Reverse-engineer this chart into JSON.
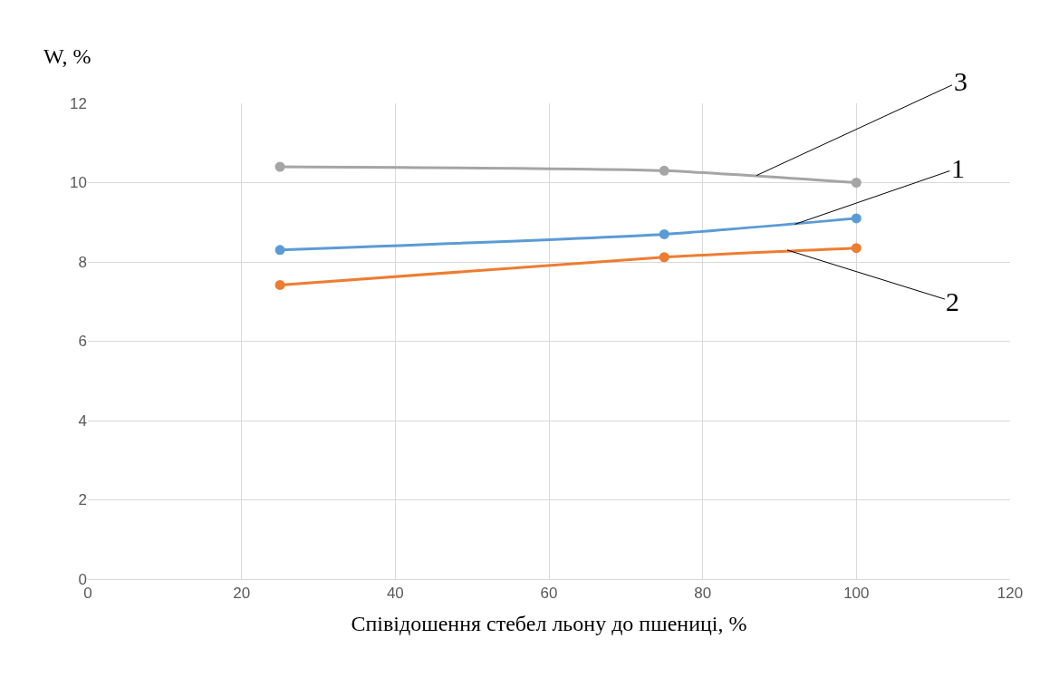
{
  "chart_data": {
    "type": "line",
    "ylabel": "W, %",
    "xlabel": "Співідошення стебел льону до пшениці, %",
    "x": [
      25,
      75,
      100
    ],
    "series": [
      {
        "color": "#a5a5a5",
        "values": [
          10.4,
          10.3,
          10.0
        ]
      },
      {
        "color": "#5b9bd5",
        "values": [
          8.3,
          8.7,
          9.1
        ]
      },
      {
        "color": "#ed7d31",
        "values": [
          7.42,
          8.12,
          8.35
        ]
      }
    ],
    "annotations": [
      {
        "text": "3",
        "x": 87,
        "y": 10.18
      },
      {
        "text": "1",
        "x": 92,
        "y": 8.95
      },
      {
        "text": "2",
        "x": 91,
        "y": 8.3
      }
    ],
    "xlim": [
      0,
      120
    ],
    "xticks": [
      0,
      20,
      40,
      60,
      80,
      100,
      120
    ],
    "ylim": [
      0,
      12
    ],
    "yticks": [
      0,
      2,
      4,
      6,
      8,
      10,
      12
    ],
    "grid": true,
    "marker": "circle",
    "line_style": "solid"
  }
}
